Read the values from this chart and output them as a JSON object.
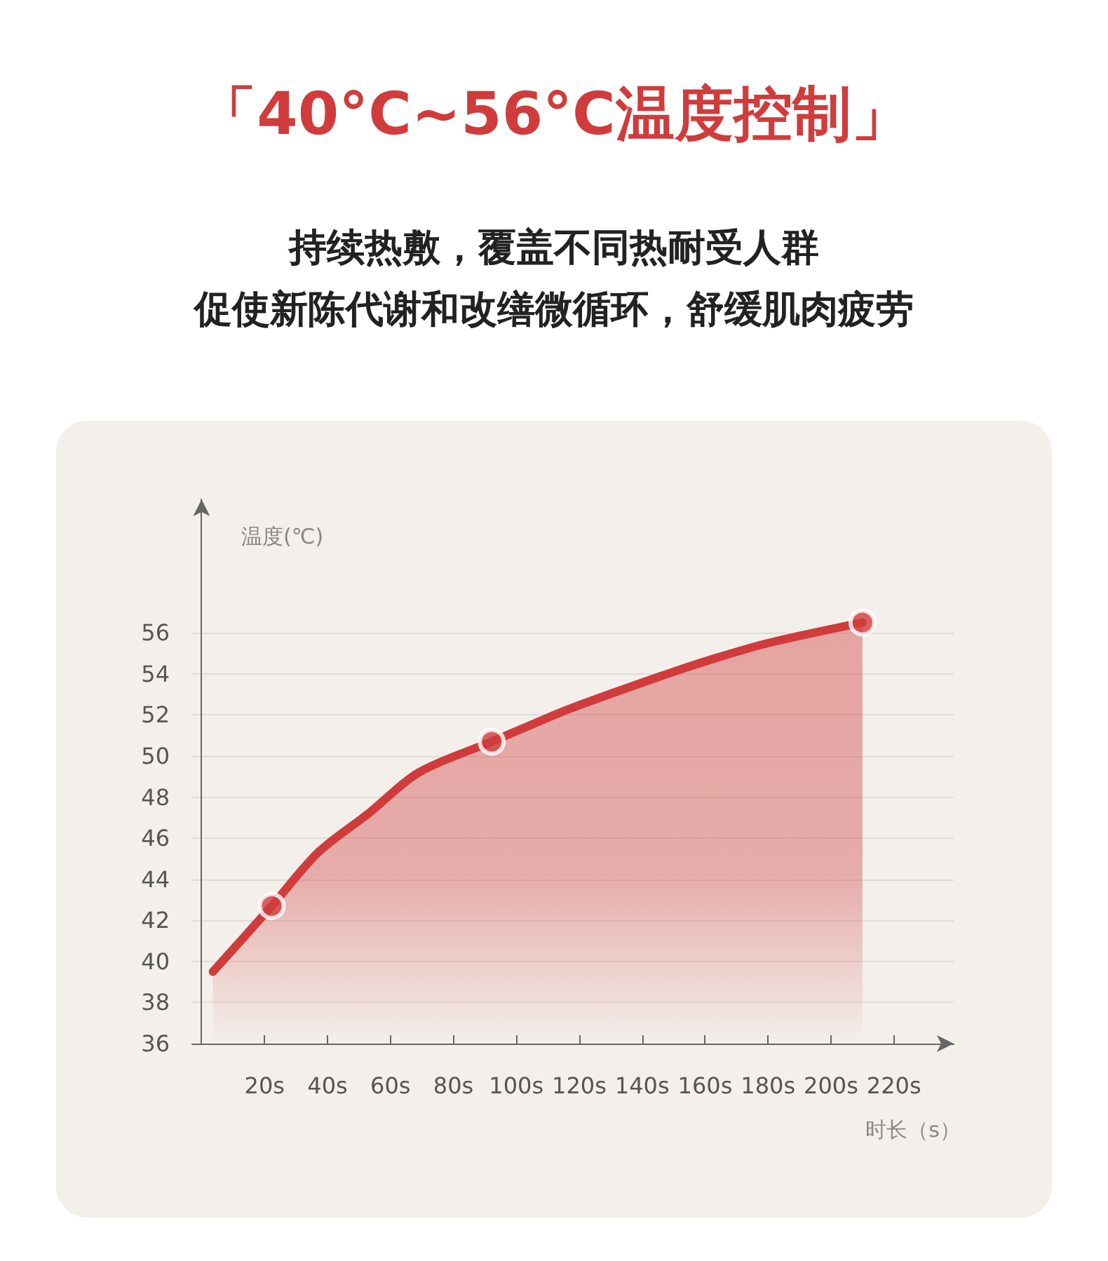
{
  "chart_data": {
    "type": "area",
    "title": "「40°C~56°C温度控制」",
    "subtitle": "持续热敷，覆盖不同热耐受人群",
    "annotations": [
      "促使新陈代谢和改缮微循环，舒缓肌肉疲劳"
    ],
    "xlabel": "时长（s）",
    "ylabel": "温度(℃)",
    "x": [
      3.6,
      22.3,
      37,
      53,
      69,
      92.2,
      117,
      148,
      164,
      180,
      210
    ],
    "series": [
      {
        "color": "#d03c3c",
        "values": [
          39.5,
          42.7,
          45.3,
          47.2,
          49.2,
          50.7,
          52.3,
          54.0,
          54.8,
          55.5,
          56.5
        ]
      },
      {
        "type": "scatter",
        "color": "#d03c3c",
        "x": [
          22.3,
          92.2,
          210
        ],
        "values": [
          42.7,
          50.7,
          56.5
        ],
        "marker": "circle"
      }
    ],
    "xlim": [
      -3,
      239
    ],
    "xticks": [
      {
        "value": 20,
        "label": "20s"
      },
      {
        "value": 40,
        "label": "40s"
      },
      {
        "value": 60,
        "label": "60s"
      },
      {
        "value": 80,
        "label": "80s"
      },
      {
        "value": 100,
        "label": "100s"
      },
      {
        "value": 120,
        "label": "120s"
      },
      {
        "value": 140,
        "label": "140s"
      },
      {
        "value": 160,
        "label": "160s"
      },
      {
        "value": 180,
        "label": "180s"
      },
      {
        "value": 200,
        "label": "200s"
      },
      {
        "value": 220,
        "label": "220s"
      }
    ],
    "ylim": [
      36,
      62.5
    ],
    "yticks": [
      36,
      38,
      40,
      42,
      44,
      46,
      48,
      50,
      52,
      54,
      56
    ],
    "grid": "y"
  }
}
